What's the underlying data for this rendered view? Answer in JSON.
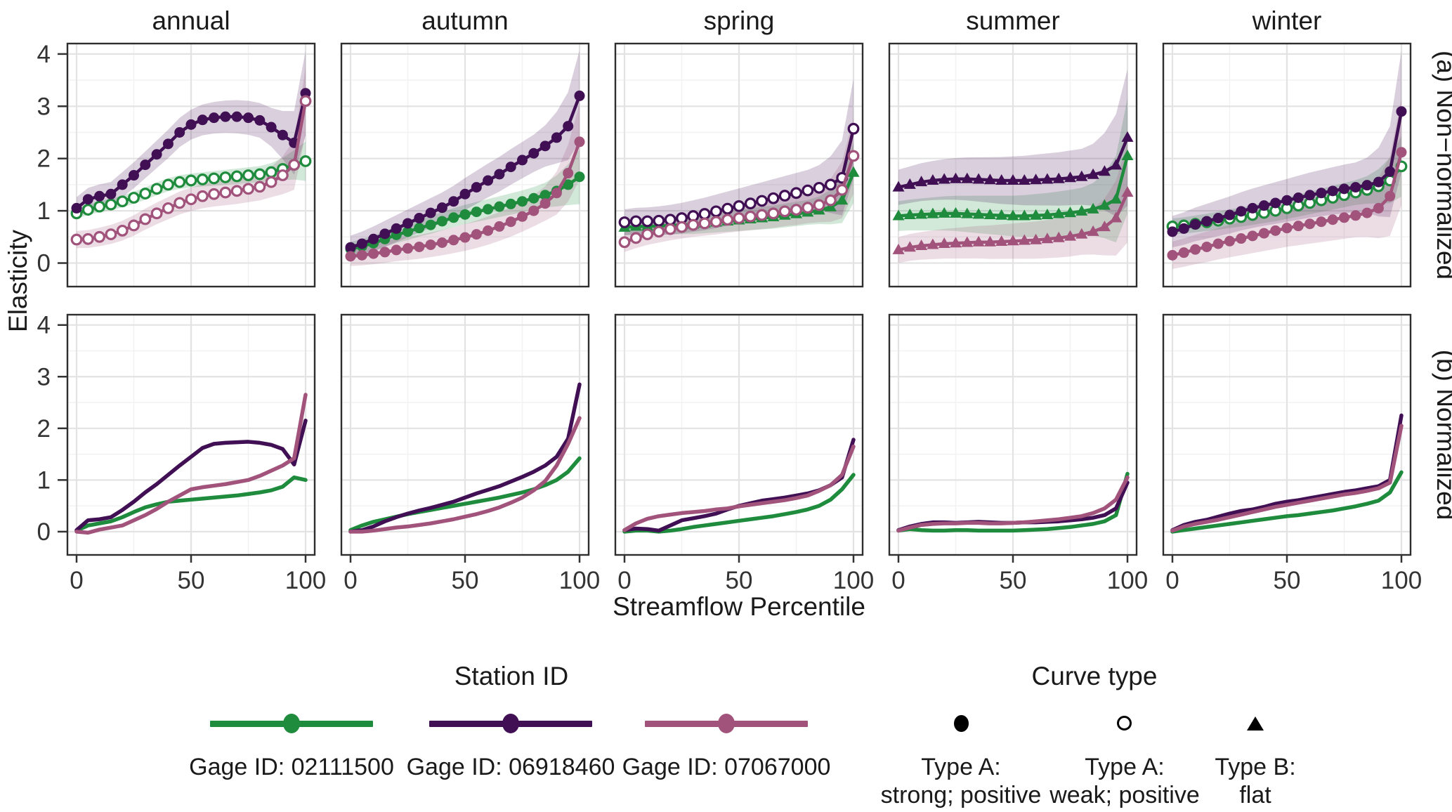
{
  "chart_data": {
    "type": "line",
    "x": [
      0,
      5,
      10,
      15,
      20,
      25,
      30,
      35,
      40,
      45,
      50,
      55,
      60,
      65,
      70,
      75,
      80,
      85,
      90,
      95,
      100
    ],
    "xlabel": "Streamflow Percentile",
    "ylabel": "Elasticity",
    "xticks": [
      0,
      50,
      100
    ],
    "yticks": [
      0,
      1,
      2,
      3,
      4
    ],
    "ylim": [
      -0.45,
      4.2
    ],
    "columns": [
      "annual",
      "autumn",
      "spring",
      "summer",
      "winter"
    ],
    "rows": [
      {
        "key": "non-normalized",
        "label": "(a) Non−normalized"
      },
      {
        "key": "normalized",
        "label": "(b) Normalized"
      }
    ],
    "stations": [
      {
        "id": "02111500",
        "label": "Gage ID: 02111500",
        "color": "#1e8b3d"
      },
      {
        "id": "06918460",
        "label": "Gage ID: 06918460",
        "color": "#400f54"
      },
      {
        "id": "07067000",
        "label": "Gage ID: 07067000",
        "color": "#a1537b"
      }
    ],
    "panels": [
      {
        "season": "annual",
        "row": "non-normalized",
        "series": [
          {
            "station": "02111500",
            "marker": "open-circle",
            "band": 0.13,
            "values": [
              0.95,
              1.02,
              1.08,
              1.12,
              1.18,
              1.25,
              1.33,
              1.42,
              1.5,
              1.55,
              1.58,
              1.6,
              1.62,
              1.64,
              1.66,
              1.68,
              1.7,
              1.74,
              1.8,
              1.88,
              1.95
            ]
          },
          {
            "station": "06918460",
            "marker": "filled-circle",
            "band": 0.28,
            "values": [
              1.05,
              1.22,
              1.28,
              1.32,
              1.5,
              1.68,
              1.88,
              2.08,
              2.28,
              2.5,
              2.65,
              2.74,
              2.78,
              2.8,
              2.8,
              2.78,
              2.73,
              2.6,
              2.45,
              2.3,
              3.25
            ]
          },
          {
            "station": "07067000",
            "marker": "open-circle",
            "band": 0.22,
            "values": [
              0.45,
              0.46,
              0.5,
              0.55,
              0.62,
              0.72,
              0.84,
              0.95,
              1.05,
              1.15,
              1.22,
              1.28,
              1.32,
              1.35,
              1.38,
              1.42,
              1.46,
              1.55,
              1.68,
              1.88,
              3.1
            ]
          }
        ]
      },
      {
        "season": "autumn",
        "row": "non-normalized",
        "series": [
          {
            "station": "02111500",
            "marker": "filled-circle",
            "band": 0.18,
            "values": [
              0.27,
              0.32,
              0.38,
              0.46,
              0.54,
              0.6,
              0.67,
              0.73,
              0.8,
              0.87,
              0.93,
              0.98,
              1.03,
              1.08,
              1.13,
              1.18,
              1.24,
              1.3,
              1.38,
              1.5,
              1.65
            ]
          },
          {
            "station": "06918460",
            "marker": "filled-circle",
            "band": 0.3,
            "values": [
              0.3,
              0.37,
              0.46,
              0.56,
              0.66,
              0.76,
              0.86,
              0.96,
              1.06,
              1.18,
              1.32,
              1.45,
              1.58,
              1.7,
              1.84,
              1.97,
              2.1,
              2.24,
              2.4,
              2.62,
              3.2
            ]
          },
          {
            "station": "07067000",
            "marker": "filled-circle",
            "band": 0.25,
            "values": [
              0.13,
              0.15,
              0.18,
              0.21,
              0.25,
              0.28,
              0.31,
              0.35,
              0.39,
              0.44,
              0.49,
              0.55,
              0.62,
              0.7,
              0.79,
              0.89,
              1.0,
              1.14,
              1.34,
              1.72,
              2.32
            ]
          }
        ]
      },
      {
        "season": "spring",
        "row": "non-normalized",
        "series": [
          {
            "station": "02111500",
            "marker": "triangle",
            "band": 0.2,
            "values": [
              0.68,
              0.7,
              0.7,
              0.71,
              0.72,
              0.73,
              0.74,
              0.76,
              0.78,
              0.8,
              0.82,
              0.84,
              0.86,
              0.88,
              0.91,
              0.94,
              0.97,
              1.01,
              1.07,
              1.2,
              1.73
            ]
          },
          {
            "station": "06918460",
            "marker": "open-circle",
            "band": 0.33,
            "values": [
              0.78,
              0.8,
              0.8,
              0.81,
              0.83,
              0.86,
              0.9,
              0.94,
              0.99,
              1.04,
              1.09,
              1.14,
              1.19,
              1.24,
              1.29,
              1.34,
              1.39,
              1.44,
              1.5,
              1.63,
              2.57
            ]
          },
          {
            "station": "07067000",
            "marker": "open-circle",
            "band": 0.25,
            "values": [
              0.4,
              0.48,
              0.55,
              0.6,
              0.65,
              0.69,
              0.73,
              0.76,
              0.79,
              0.83,
              0.86,
              0.89,
              0.92,
              0.95,
              0.99,
              1.02,
              1.06,
              1.11,
              1.2,
              1.4,
              2.05
            ]
          }
        ]
      },
      {
        "season": "summer",
        "row": "non-normalized",
        "series": [
          {
            "station": "02111500",
            "marker": "triangle",
            "band": 0.38,
            "values": [
              0.9,
              0.92,
              0.93,
              0.94,
              0.95,
              0.95,
              0.94,
              0.93,
              0.92,
              0.91,
              0.9,
              0.9,
              0.91,
              0.92,
              0.94,
              0.96,
              0.99,
              1.03,
              1.1,
              1.22,
              2.05
            ]
          },
          {
            "station": "06918460",
            "marker": "triangle",
            "band": 0.45,
            "values": [
              1.45,
              1.5,
              1.55,
              1.58,
              1.6,
              1.61,
              1.61,
              1.6,
              1.59,
              1.58,
              1.58,
              1.58,
              1.59,
              1.6,
              1.61,
              1.63,
              1.65,
              1.69,
              1.75,
              1.87,
              2.4
            ]
          },
          {
            "station": "07067000",
            "marker": "triangle",
            "band": 0.33,
            "values": [
              0.25,
              0.3,
              0.33,
              0.35,
              0.37,
              0.38,
              0.39,
              0.4,
              0.4,
              0.41,
              0.42,
              0.43,
              0.44,
              0.46,
              0.48,
              0.51,
              0.55,
              0.6,
              0.69,
              0.86,
              1.35
            ]
          }
        ]
      },
      {
        "season": "winter",
        "row": "non-normalized",
        "series": [
          {
            "station": "02111500",
            "marker": "open-circle",
            "band": 0.2,
            "values": [
              0.7,
              0.72,
              0.75,
              0.78,
              0.81,
              0.85,
              0.88,
              0.92,
              0.96,
              1.0,
              1.05,
              1.1,
              1.15,
              1.2,
              1.25,
              1.3,
              1.35,
              1.4,
              1.47,
              1.58,
              1.85
            ]
          },
          {
            "station": "06918460",
            "marker": "filled-circle",
            "band": 0.4,
            "values": [
              0.6,
              0.66,
              0.74,
              0.8,
              0.86,
              0.92,
              0.99,
              1.05,
              1.1,
              1.15,
              1.2,
              1.25,
              1.3,
              1.34,
              1.38,
              1.42,
              1.45,
              1.49,
              1.55,
              1.75,
              2.9
            ]
          },
          {
            "station": "07067000",
            "marker": "filled-circle",
            "band": 0.35,
            "values": [
              0.15,
              0.2,
              0.26,
              0.31,
              0.37,
              0.42,
              0.47,
              0.52,
              0.57,
              0.62,
              0.67,
              0.71,
              0.75,
              0.79,
              0.83,
              0.87,
              0.91,
              0.96,
              1.05,
              1.28,
              2.12
            ]
          }
        ]
      },
      {
        "season": "annual",
        "row": "normalized",
        "series": [
          {
            "station": "02111500",
            "values": [
              0.02,
              0.12,
              0.16,
              0.2,
              0.28,
              0.38,
              0.47,
              0.53,
              0.58,
              0.6,
              0.62,
              0.64,
              0.66,
              0.68,
              0.7,
              0.73,
              0.76,
              0.8,
              0.87,
              1.05,
              1.0
            ]
          },
          {
            "station": "06918460",
            "values": [
              0.03,
              0.22,
              0.24,
              0.28,
              0.42,
              0.58,
              0.76,
              0.92,
              1.1,
              1.28,
              1.45,
              1.62,
              1.7,
              1.72,
              1.73,
              1.74,
              1.72,
              1.68,
              1.6,
              1.3,
              2.15
            ]
          },
          {
            "station": "07067000",
            "values": [
              0.0,
              -0.02,
              0.04,
              0.08,
              0.12,
              0.22,
              0.32,
              0.44,
              0.58,
              0.7,
              0.82,
              0.86,
              0.89,
              0.92,
              0.96,
              1.0,
              1.08,
              1.18,
              1.28,
              1.42,
              2.65
            ]
          }
        ]
      },
      {
        "season": "autumn",
        "row": "normalized",
        "series": [
          {
            "station": "02111500",
            "values": [
              0.03,
              0.12,
              0.19,
              0.24,
              0.29,
              0.34,
              0.38,
              0.42,
              0.46,
              0.5,
              0.54,
              0.58,
              0.62,
              0.66,
              0.71,
              0.76,
              0.82,
              0.9,
              1.0,
              1.16,
              1.42
            ]
          },
          {
            "station": "06918460",
            "values": [
              0.0,
              0.03,
              0.1,
              0.2,
              0.28,
              0.35,
              0.41,
              0.46,
              0.52,
              0.58,
              0.66,
              0.74,
              0.81,
              0.88,
              0.97,
              1.06,
              1.16,
              1.28,
              1.45,
              1.8,
              2.85
            ]
          },
          {
            "station": "07067000",
            "values": [
              0.0,
              0.0,
              0.02,
              0.05,
              0.08,
              0.1,
              0.13,
              0.16,
              0.2,
              0.24,
              0.29,
              0.34,
              0.4,
              0.47,
              0.56,
              0.66,
              0.8,
              0.98,
              1.28,
              1.7,
              2.2
            ]
          }
        ]
      },
      {
        "season": "spring",
        "row": "normalized",
        "series": [
          {
            "station": "02111500",
            "values": [
              0.0,
              0.02,
              0.02,
              0.0,
              0.02,
              0.05,
              0.09,
              0.12,
              0.15,
              0.18,
              0.21,
              0.24,
              0.27,
              0.3,
              0.34,
              0.38,
              0.43,
              0.5,
              0.62,
              0.82,
              1.1
            ]
          },
          {
            "station": "06918460",
            "values": [
              0.03,
              0.06,
              0.05,
              0.02,
              0.12,
              0.22,
              0.26,
              0.3,
              0.35,
              0.43,
              0.5,
              0.55,
              0.6,
              0.63,
              0.66,
              0.7,
              0.74,
              0.8,
              0.9,
              1.05,
              1.78
            ]
          },
          {
            "station": "07067000",
            "values": [
              0.03,
              0.16,
              0.25,
              0.3,
              0.33,
              0.36,
              0.38,
              0.4,
              0.43,
              0.45,
              0.49,
              0.52,
              0.55,
              0.58,
              0.61,
              0.65,
              0.7,
              0.79,
              0.9,
              1.1,
              1.65
            ]
          }
        ]
      },
      {
        "season": "summer",
        "row": "normalized",
        "series": [
          {
            "station": "02111500",
            "values": [
              0.02,
              0.05,
              0.03,
              0.02,
              0.02,
              0.03,
              0.03,
              0.02,
              0.02,
              0.02,
              0.02,
              0.03,
              0.04,
              0.05,
              0.07,
              0.09,
              0.12,
              0.15,
              0.2,
              0.32,
              1.12
            ]
          },
          {
            "station": "06918460",
            "values": [
              0.03,
              0.1,
              0.15,
              0.18,
              0.18,
              0.17,
              0.18,
              0.19,
              0.18,
              0.17,
              0.17,
              0.18,
              0.18,
              0.19,
              0.2,
              0.22,
              0.24,
              0.27,
              0.32,
              0.45,
              0.95
            ]
          },
          {
            "station": "07067000",
            "values": [
              0.02,
              0.08,
              0.13,
              0.15,
              0.16,
              0.16,
              0.17,
              0.17,
              0.16,
              0.16,
              0.17,
              0.18,
              0.2,
              0.22,
              0.24,
              0.27,
              0.3,
              0.36,
              0.45,
              0.62,
              1.05
            ]
          }
        ]
      },
      {
        "season": "winter",
        "row": "normalized",
        "series": [
          {
            "station": "02111500",
            "values": [
              0.0,
              0.03,
              0.06,
              0.09,
              0.12,
              0.15,
              0.18,
              0.21,
              0.24,
              0.27,
              0.3,
              0.32,
              0.35,
              0.38,
              0.41,
              0.45,
              0.49,
              0.54,
              0.6,
              0.76,
              1.15
            ]
          },
          {
            "station": "06918460",
            "values": [
              0.03,
              0.13,
              0.19,
              0.23,
              0.29,
              0.35,
              0.4,
              0.43,
              0.48,
              0.54,
              0.58,
              0.61,
              0.65,
              0.69,
              0.73,
              0.77,
              0.8,
              0.84,
              0.88,
              1.0,
              2.25
            ]
          },
          {
            "station": "07067000",
            "values": [
              0.02,
              0.1,
              0.15,
              0.19,
              0.23,
              0.28,
              0.33,
              0.38,
              0.43,
              0.48,
              0.52,
              0.56,
              0.6,
              0.64,
              0.68,
              0.72,
              0.75,
              0.79,
              0.84,
              0.95,
              2.05
            ]
          }
        ]
      }
    ]
  },
  "legend": {
    "station_title": "Station ID",
    "curve_title": "Curve type",
    "curves": [
      {
        "marker": "filled-circle",
        "lines": [
          "Type A:",
          "strong; positive"
        ]
      },
      {
        "marker": "open-circle",
        "lines": [
          "Type A:",
          "weak; positive"
        ]
      },
      {
        "marker": "triangle",
        "lines": [
          "Type B:",
          "flat"
        ]
      }
    ]
  },
  "colors": {
    "green": "#1e8b3d",
    "purple": "#400f54",
    "mauve": "#a1537b",
    "text": "#1a1a1a",
    "grid_major": "#e3e3e3",
    "grid_minor": "#f2f2f2",
    "panel_border": "#2e2e2e"
  }
}
